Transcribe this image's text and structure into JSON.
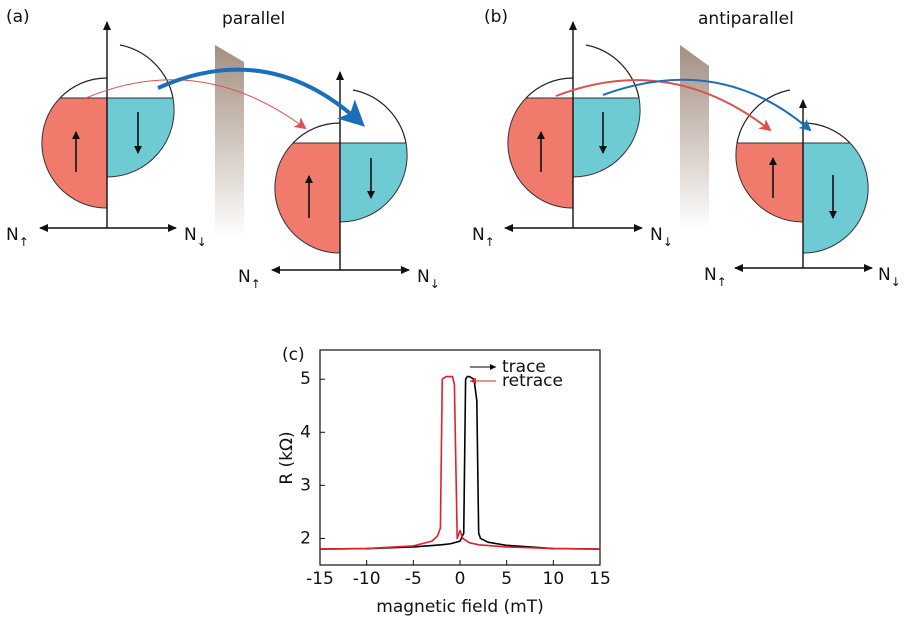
{
  "panels": {
    "a": {
      "label": "(a)",
      "title": "parallel",
      "axes": [
        {
          "left": {
            "base": "N",
            "sub": "↑"
          },
          "right": {
            "base": "N",
            "sub": "↓"
          }
        },
        {
          "left": {
            "base": "N",
            "sub": "↑"
          },
          "right": {
            "base": "N",
            "sub": "↓"
          }
        }
      ]
    },
    "b": {
      "label": "(b)",
      "title": "antiparallel",
      "axes": [
        {
          "left": {
            "base": "N",
            "sub": "↑"
          },
          "right": {
            "base": "N",
            "sub": "↓"
          }
        },
        {
          "left": {
            "base": "N",
            "sub": "↑"
          },
          "right": {
            "base": "N",
            "sub": "↓"
          }
        }
      ]
    },
    "c": {
      "label": "(c)"
    }
  },
  "chart_data": {
    "type": "line",
    "xlabel": "magnetic field (mT)",
    "ylabel": "R (kΩ)",
    "xlim": [
      -15,
      15
    ],
    "xticks": [
      -15,
      -10,
      -5,
      0,
      5,
      10,
      15
    ],
    "ylim": [
      1.5,
      5.55
    ],
    "yticks": [
      2,
      3,
      4,
      5
    ],
    "series": [
      {
        "name": "trace",
        "color": "#000000",
        "x": [
          -15,
          -10,
          -5,
          -2,
          -1,
          0,
          0.4,
          0.6,
          0.8,
          1.0,
          1.5,
          1.8,
          2.0,
          2.2,
          3,
          5,
          10,
          15
        ],
        "values": [
          1.8,
          1.81,
          1.84,
          1.88,
          1.9,
          1.95,
          2.1,
          5.0,
          5.05,
          5.05,
          5.0,
          4.6,
          2.1,
          2.0,
          1.93,
          1.87,
          1.81,
          1.8
        ]
      },
      {
        "name": "retrace",
        "color": "#e0202a",
        "x": [
          15,
          10,
          5,
          2,
          1,
          0.3,
          0,
          -0.3,
          -0.6,
          -0.8,
          -1.0,
          -1.5,
          -1.9,
          -2.1,
          -2.4,
          -3,
          -5,
          -10,
          -15
        ],
        "values": [
          1.8,
          1.81,
          1.84,
          1.88,
          1.92,
          2.0,
          2.15,
          2.0,
          4.9,
          5.05,
          5.05,
          5.05,
          5.0,
          2.2,
          2.05,
          1.95,
          1.86,
          1.81,
          1.8
        ]
      }
    ]
  }
}
